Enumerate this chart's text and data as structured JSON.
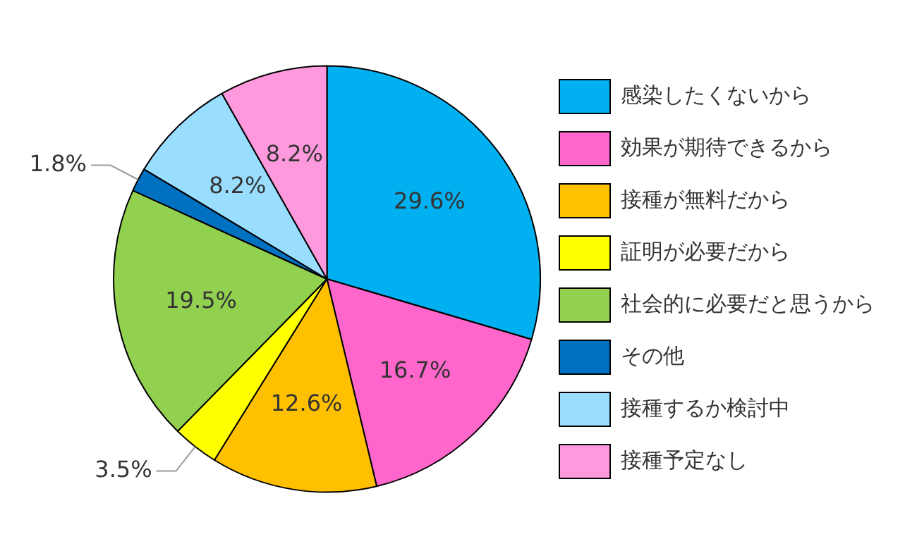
{
  "chart_data": {
    "type": "pie",
    "categories": [
      "感染したくないから",
      "効果が期待できるから",
      "接種が無料だから",
      "証明が必要だから",
      "社会的に必要だと思うから",
      "その他",
      "接種するか検討中",
      "接種予定なし"
    ],
    "values": [
      29.6,
      16.7,
      12.6,
      3.5,
      19.5,
      1.8,
      8.2,
      8.2
    ],
    "value_labels": [
      "29.6%",
      "16.7%",
      "12.6%",
      "3.5%",
      "19.5%",
      "1.8%",
      "8.2%",
      "8.2%"
    ],
    "colors": [
      "#00b0f0",
      "#ff66cc",
      "#ffc000",
      "#ffff00",
      "#92d050",
      "#0070c0",
      "#99ddff",
      "#ff99dd"
    ],
    "legend": "right"
  }
}
